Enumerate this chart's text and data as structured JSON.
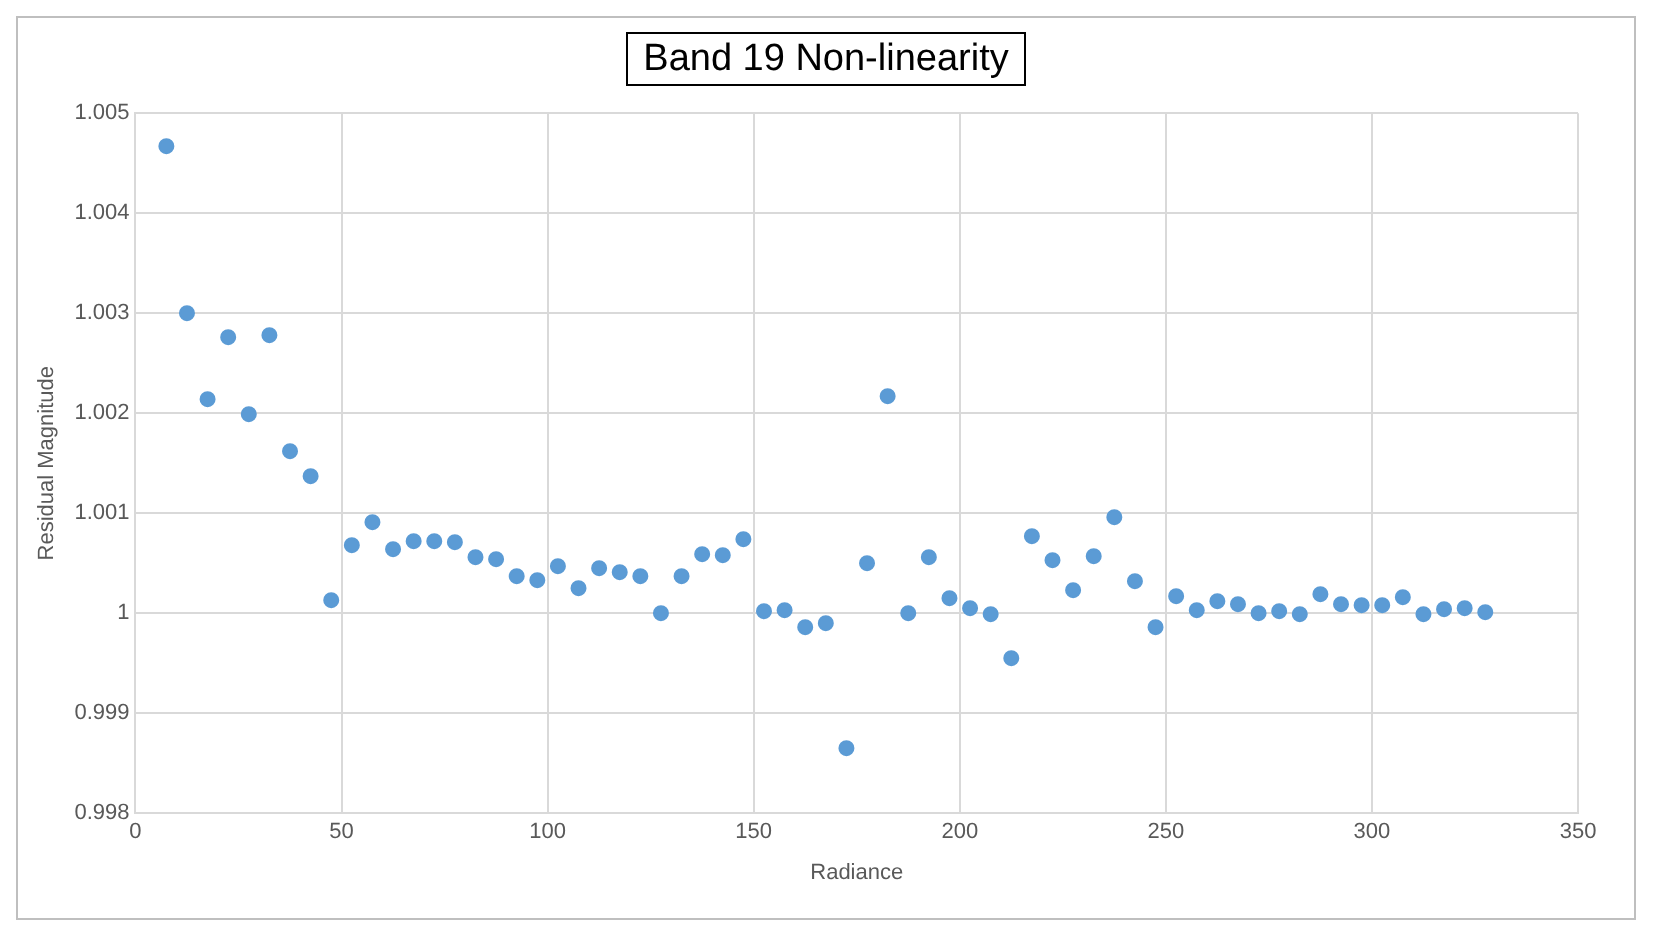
{
  "chart_data": {
    "type": "scatter",
    "title": "Band 19 Non-linearity",
    "xlabel": "Radiance",
    "ylabel": "Residual Magnitude",
    "x": [
      7.5,
      12.5,
      17.5,
      22.5,
      27.5,
      32.5,
      37.5,
      42.5,
      47.5,
      52.5,
      57.5,
      62.5,
      67.5,
      72.5,
      77.5,
      82.5,
      87.5,
      92.5,
      97.5,
      102.5,
      107.5,
      112.5,
      117.5,
      122.5,
      127.5,
      132.5,
      137.5,
      142.5,
      147.5,
      152.5,
      157.5,
      162.5,
      167.5,
      172.5,
      177.5,
      182.5,
      187.5,
      192.5,
      197.5,
      202.5,
      207.5,
      212.5,
      217.5,
      222.5,
      227.5,
      232.5,
      237.5,
      242.5,
      247.5,
      252.5,
      257.5,
      262.5,
      267.5,
      272.5,
      277.5,
      282.5,
      287.5,
      292.5,
      297.5,
      302.5,
      307.5,
      312.5,
      317.5,
      322.5,
      327.5
    ],
    "series": [
      {
        "color": "#5b9bd5",
        "values": [
          1.00467,
          1.003,
          1.00214,
          1.00276,
          1.00199,
          1.00278,
          1.00162,
          1.00137,
          1.00013,
          1.00068,
          1.00091,
          1.00064,
          1.00072,
          1.00072,
          1.00071,
          1.00056,
          1.00054,
          1.00037,
          1.00033,
          1.00047,
          1.00025,
          1.00045,
          1.00041,
          1.00037,
          1.0,
          1.00037,
          1.00059,
          1.00058,
          1.00074,
          1.00002,
          1.00003,
          0.99986,
          0.9999,
          0.99865,
          1.0005,
          1.00217,
          1.0,
          1.00056,
          1.00015,
          1.00005,
          0.99999,
          0.99955,
          1.00077,
          1.00053,
          1.00023,
          1.00057,
          1.00096,
          1.00032,
          0.99986,
          1.00017,
          1.00003,
          1.00012,
          1.00009,
          1.0,
          1.00002,
          0.99999,
          1.00019,
          1.00009,
          1.00008,
          1.00008,
          1.00016,
          0.99999,
          1.00004,
          1.00005,
          1.00001
        ]
      }
    ],
    "xlim": [
      0,
      350
    ],
    "xticks": [
      0,
      50,
      100,
      150,
      200,
      250,
      300,
      350
    ],
    "ylim": [
      0.998,
      1.005
    ],
    "yticks": [
      0.998,
      0.999,
      1,
      1.001,
      1.002,
      1.003,
      1.004,
      1.005
    ],
    "grid": true,
    "marker": "circle",
    "legend": false
  }
}
